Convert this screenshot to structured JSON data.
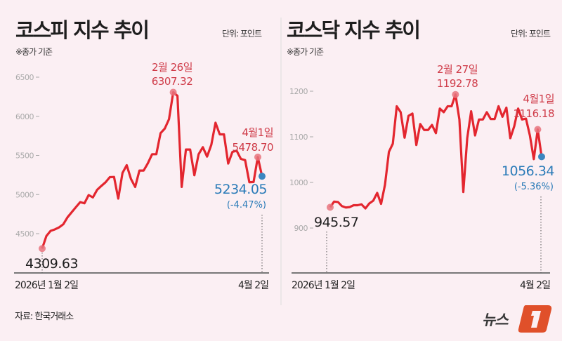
{
  "colors": {
    "line": "#e3262f",
    "highlight": "#e8737c",
    "last_point": "#3a86c0",
    "background": "#fbeff3",
    "logo": "#e0502a"
  },
  "source": "자료: 한국거래소",
  "logo": "뉴스1",
  "chart_data": [
    {
      "type": "line",
      "title": "코스피 지수 추이",
      "unit": "단위: 포인트",
      "note": "※종가 기준",
      "ylim": [
        4300,
        6600
      ],
      "yticks": [
        "6500",
        "6000",
        "5500",
        "5000",
        "4500"
      ],
      "ytick_values": [
        6500,
        6000,
        5500,
        5000,
        4500
      ],
      "x_labels": {
        "start": "2026년 1월 2일",
        "end": "4월 2일"
      },
      "values": [
        4309.63,
        4470,
        4536,
        4554,
        4580,
        4620,
        4709,
        4775,
        4840,
        4903,
        4888,
        4993,
        4963,
        5060,
        5110,
        5157,
        5222,
        5225,
        4948,
        5276,
        5375,
        5200,
        5097,
        5306,
        5306,
        5400,
        5515,
        5515,
        5784,
        5843,
        5963,
        6307.32,
        6261,
        5097,
        5575,
        5575,
        5246,
        5515,
        5605,
        5485,
        5634,
        5918,
        5769,
        5769,
        5396,
        5545,
        5560,
        5455,
        5440,
        5157,
        5160,
        5478.7,
        5234.05
      ],
      "annotations": {
        "start": "4309.63",
        "peak_date": "2월 26일",
        "peak_value": "6307.32",
        "prev_date": "4월1일",
        "prev_value": "5478.70",
        "last_value": "5234.05",
        "last_change": "(-4.47%)"
      }
    },
    {
      "type": "line",
      "title": "코스닥 지수 추이",
      "unit": "단위: 포인트",
      "note": "※종가 기준",
      "ylim": [
        880,
        1230
      ],
      "yticks": [
        "1200",
        "1100",
        "1000",
        "900"
      ],
      "ytick_values": [
        1200,
        1100,
        1000,
        900
      ],
      "x_labels": {
        "start": "2026년 1월 2일",
        "end": "4월 2일"
      },
      "values": [
        945.57,
        958,
        957,
        948,
        945,
        946,
        950,
        950,
        952,
        943,
        954,
        960,
        977,
        953,
        995,
        1067,
        1085,
        1167,
        1154,
        1098,
        1146,
        1151,
        1082,
        1128,
        1115,
        1115,
        1126,
        1108,
        1162,
        1154,
        1167,
        1167,
        1192.78,
        1138,
        979,
        1097,
        1156,
        1103,
        1138,
        1138,
        1154,
        1139,
        1139,
        1167,
        1144,
        1164,
        1097,
        1123,
        1162,
        1138,
        1140,
        1103,
        1051,
        1116.18,
        1056.34
      ],
      "annotations": {
        "start": "945.57",
        "peak_date": "2월 27일",
        "peak_value": "1192.78",
        "prev_date": "4월1일",
        "prev_value": "1116.18",
        "last_value": "1056.34",
        "last_change": "(-5.36%)"
      }
    }
  ]
}
